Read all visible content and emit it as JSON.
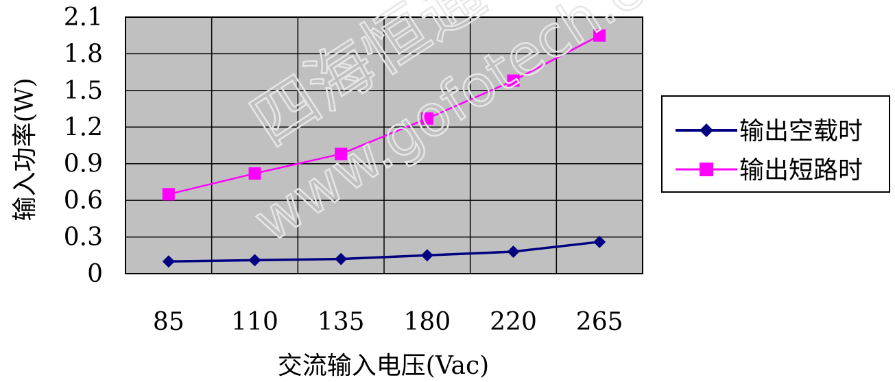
{
  "chart_data": {
    "type": "line",
    "title": "",
    "xlabel": "交流输入电压(Vac)",
    "ylabel": "输入功率(W)",
    "categories": [
      "85",
      "110",
      "135",
      "180",
      "220",
      "265"
    ],
    "yticks": [
      "0",
      "0.3",
      "0.6",
      "0.9",
      "1.2",
      "1.5",
      "1.8",
      "2.1"
    ],
    "ylim": [
      0,
      2.1
    ],
    "grid": true,
    "plot_background": "#c0c0c0",
    "legend_position": "right",
    "series": [
      {
        "name": "输出空载时",
        "color": "#000080",
        "marker": "diamond",
        "values": [
          0.1,
          0.11,
          0.12,
          0.15,
          0.18,
          0.26
        ]
      },
      {
        "name": "输出短路时",
        "color": "#ff00ff",
        "marker": "square",
        "values": [
          0.65,
          0.82,
          0.98,
          1.27,
          1.58,
          1.95
        ]
      }
    ]
  },
  "watermark": {
    "line1": "四海恒通",
    "line2": "www.gofotech.com"
  }
}
